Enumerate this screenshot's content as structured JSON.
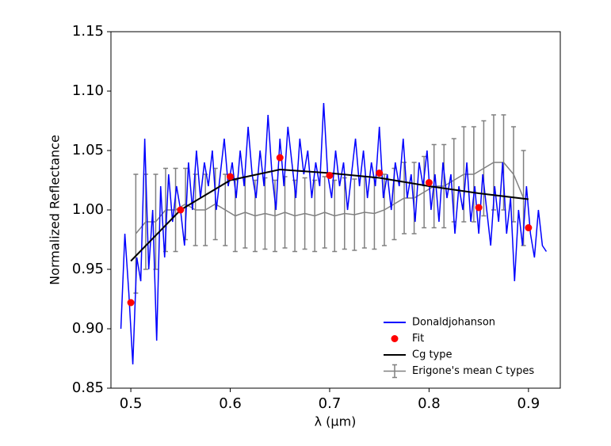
{
  "chart_data": {
    "type": "line",
    "xlabel": "λ (μm)",
    "ylabel": "Normalized Reflectance",
    "xlim": [
      0.48,
      0.932
    ],
    "ylim": [
      0.85,
      1.15
    ],
    "xticks": [
      0.5,
      0.6,
      0.7,
      0.8,
      0.9
    ],
    "yticks": [
      0.85,
      {
        "value": 0.9,
        "label": "0.90"
      },
      0.95,
      {
        "value": 1,
        "label": "1.00"
      },
      1.05,
      {
        "value": 1.1,
        "label": "1.10"
      },
      1.15
    ],
    "legend": "lower right",
    "series": [
      {
        "name": "Donaldjohanson",
        "style": "line",
        "color": "#0000ff",
        "x": [
          0.49,
          0.494,
          0.498,
          0.502,
          0.506,
          0.51,
          0.514,
          0.518,
          0.522,
          0.526,
          0.53,
          0.534,
          0.538,
          0.542,
          0.546,
          0.55,
          0.554,
          0.558,
          0.562,
          0.566,
          0.57,
          0.574,
          0.578,
          0.582,
          0.586,
          0.59,
          0.594,
          0.598,
          0.602,
          0.606,
          0.61,
          0.614,
          0.618,
          0.622,
          0.626,
          0.63,
          0.634,
          0.638,
          0.642,
          0.646,
          0.65,
          0.654,
          0.658,
          0.662,
          0.666,
          0.67,
          0.674,
          0.678,
          0.682,
          0.686,
          0.69,
          0.694,
          0.698,
          0.702,
          0.706,
          0.71,
          0.714,
          0.718,
          0.722,
          0.726,
          0.73,
          0.734,
          0.738,
          0.742,
          0.746,
          0.75,
          0.754,
          0.758,
          0.762,
          0.766,
          0.77,
          0.774,
          0.778,
          0.782,
          0.786,
          0.79,
          0.794,
          0.798,
          0.802,
          0.806,
          0.81,
          0.814,
          0.818,
          0.822,
          0.826,
          0.83,
          0.834,
          0.838,
          0.842,
          0.846,
          0.85,
          0.854,
          0.858,
          0.862,
          0.866,
          0.87,
          0.874,
          0.878,
          0.882,
          0.886,
          0.89,
          0.894,
          0.898,
          0.902,
          0.906,
          0.91,
          0.914,
          0.918
        ],
        "values": [
          0.9,
          0.98,
          0.93,
          0.87,
          0.96,
          0.94,
          1.06,
          0.95,
          1.0,
          0.89,
          1.02,
          0.96,
          1.03,
          0.99,
          1.02,
          1.0,
          0.97,
          1.04,
          1.0,
          1.05,
          1.01,
          1.04,
          1.02,
          1.05,
          1.0,
          1.03,
          1.06,
          1.02,
          1.04,
          1.01,
          1.05,
          1.02,
          1.07,
          1.03,
          1.01,
          1.05,
          1.02,
          1.08,
          1.03,
          1.0,
          1.06,
          1.02,
          1.07,
          1.04,
          1.01,
          1.06,
          1.03,
          1.05,
          1.01,
          1.04,
          1.02,
          1.09,
          1.03,
          1.01,
          1.05,
          1.02,
          1.04,
          1.0,
          1.03,
          1.06,
          1.02,
          1.05,
          1.01,
          1.04,
          1.02,
          1.07,
          1.01,
          1.03,
          1.0,
          1.04,
          1.02,
          1.06,
          1.01,
          1.03,
          0.99,
          1.04,
          1.02,
          1.05,
          1.0,
          1.03,
          0.99,
          1.04,
          1.01,
          1.03,
          0.98,
          1.02,
          1.0,
          1.04,
          0.99,
          1.02,
          0.98,
          1.03,
          1.0,
          0.97,
          1.02,
          0.99,
          1.04,
          0.98,
          1.01,
          0.94,
          1.0,
          0.97,
          1.02,
          0.98,
          0.96,
          1.0,
          0.97,
          0.965
        ]
      },
      {
        "name": "Fit",
        "style": "scatter",
        "color": "#ff0000",
        "x": [
          0.5,
          0.55,
          0.6,
          0.65,
          0.7,
          0.75,
          0.8,
          0.85,
          0.9
        ],
        "values": [
          0.922,
          1.0,
          1.028,
          1.044,
          1.029,
          1.031,
          1.023,
          1.002,
          0.985
        ]
      },
      {
        "name": "Cg type",
        "style": "line",
        "color": "#000000",
        "x": [
          0.5,
          0.55,
          0.6,
          0.65,
          0.7,
          0.75,
          0.8,
          0.85,
          0.9
        ],
        "values": [
          0.957,
          1.0,
          1.025,
          1.034,
          1.031,
          1.027,
          1.02,
          1.014,
          1.009
        ]
      },
      {
        "name": "Erigone's mean C types",
        "style": "errorbar",
        "color": "#808080",
        "x": [
          0.505,
          0.515,
          0.525,
          0.535,
          0.545,
          0.555,
          0.565,
          0.575,
          0.585,
          0.595,
          0.605,
          0.615,
          0.625,
          0.635,
          0.645,
          0.655,
          0.665,
          0.675,
          0.685,
          0.695,
          0.705,
          0.715,
          0.725,
          0.735,
          0.745,
          0.755,
          0.765,
          0.775,
          0.785,
          0.795,
          0.805,
          0.815,
          0.825,
          0.835,
          0.845,
          0.855,
          0.865,
          0.875,
          0.885,
          0.895
        ],
        "values": [
          0.98,
          0.99,
          0.99,
          1.0,
          1.0,
          1.005,
          1.0,
          1.0,
          1.005,
          1.0,
          0.995,
          0.998,
          0.995,
          0.997,
          0.995,
          0.998,
          0.995,
          0.997,
          0.995,
          0.998,
          0.995,
          0.997,
          0.996,
          0.998,
          0.997,
          1.0,
          1.005,
          1.01,
          1.01,
          1.015,
          1.02,
          1.02,
          1.025,
          1.03,
          1.03,
          1.035,
          1.04,
          1.04,
          1.03,
          1.01
        ],
        "errors": [
          0.05,
          0.04,
          0.04,
          0.035,
          0.035,
          0.03,
          0.03,
          0.03,
          0.03,
          0.03,
          0.03,
          0.03,
          0.03,
          0.03,
          0.03,
          0.03,
          0.03,
          0.03,
          0.03,
          0.03,
          0.03,
          0.03,
          0.03,
          0.03,
          0.03,
          0.03,
          0.03,
          0.03,
          0.03,
          0.03,
          0.035,
          0.035,
          0.035,
          0.04,
          0.04,
          0.04,
          0.04,
          0.04,
          0.04,
          0.04
        ]
      }
    ]
  }
}
